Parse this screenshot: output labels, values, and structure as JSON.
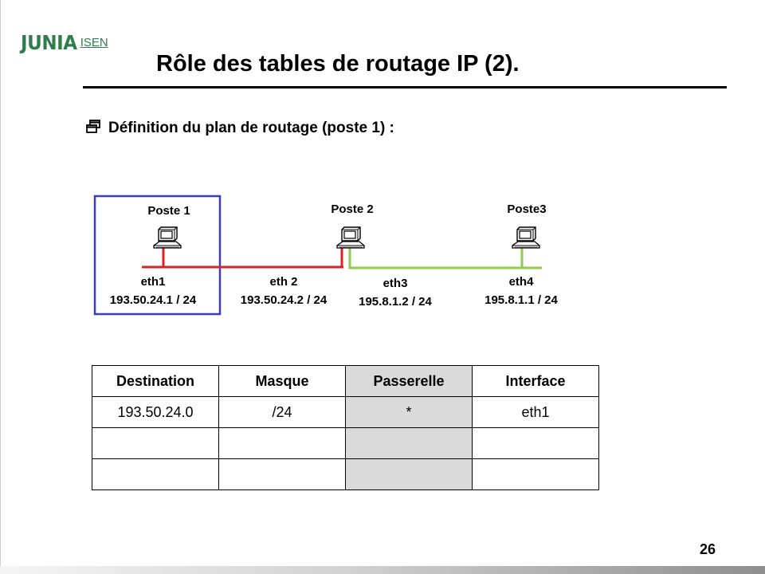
{
  "logo": {
    "brand": "JUNIA",
    "sub": "ISEN"
  },
  "slide": {
    "title": "Rôle des tables de routage IP (2).",
    "page_number": "26"
  },
  "bullet": {
    "icon": "window-bullet-icon",
    "text": "Définition du plan de routage (poste 1) :"
  },
  "network": {
    "hosts": [
      {
        "name": "Poste 1"
      },
      {
        "name": "Poste 2"
      },
      {
        "name": "Poste3"
      }
    ],
    "interfaces": [
      {
        "name": "eth1",
        "address": "193.50.24.1 / 24"
      },
      {
        "name": "eth 2",
        "address": "193.50.24.2 / 24"
      },
      {
        "name": "eth3",
        "address": "195.8.1.2 / 24"
      },
      {
        "name": "eth4",
        "address": "195.8.1.1 / 24"
      }
    ],
    "colors": {
      "network1": "#dd2222",
      "network2": "#8fce4a",
      "highlight_box": "#3a3acc"
    }
  },
  "routing_table": {
    "headers": [
      "Destination",
      "Masque",
      "Passerelle",
      "Interface"
    ],
    "rows": [
      [
        "193.50.24.0",
        "/24",
        "*",
        "eth1"
      ],
      [
        "",
        "",
        "",
        ""
      ],
      [
        "",
        "",
        "",
        ""
      ]
    ]
  }
}
